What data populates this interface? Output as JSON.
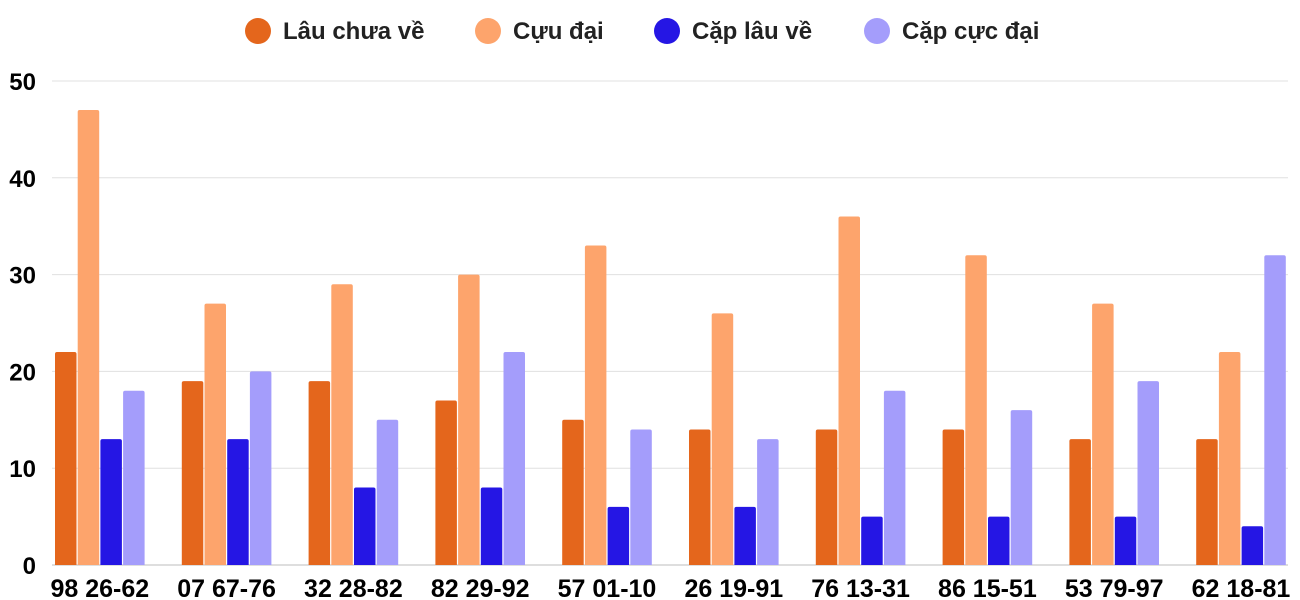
{
  "chart_data": {
    "type": "bar",
    "categories": [
      "98 26-62",
      "07 67-76",
      "32 28-82",
      "82 29-92",
      "57 01-10",
      "26 19-91",
      "76 13-31",
      "86 15-51",
      "53 79-97",
      "62 18-81"
    ],
    "series": [
      {
        "name": "Lâu chưa về",
        "color": "#e4661c",
        "values": [
          22,
          19,
          19,
          17,
          15,
          14,
          14,
          14,
          13,
          13
        ]
      },
      {
        "name": "Cựu đại",
        "color": "#fda46c",
        "values": [
          47,
          27,
          29,
          30,
          33,
          26,
          36,
          32,
          27,
          22
        ]
      },
      {
        "name": "Cặp lâu về",
        "color": "#2516e4",
        "values": [
          13,
          13,
          8,
          8,
          6,
          6,
          5,
          5,
          5,
          4
        ]
      },
      {
        "name": "Cặp cực đại",
        "color": "#a49dfb",
        "values": [
          18,
          20,
          15,
          22,
          14,
          13,
          18,
          16,
          19,
          32
        ]
      }
    ],
    "ylim": [
      0,
      50
    ],
    "yticks": [
      0,
      10,
      20,
      30,
      40,
      50
    ],
    "grid": true,
    "legend": "top-center"
  }
}
